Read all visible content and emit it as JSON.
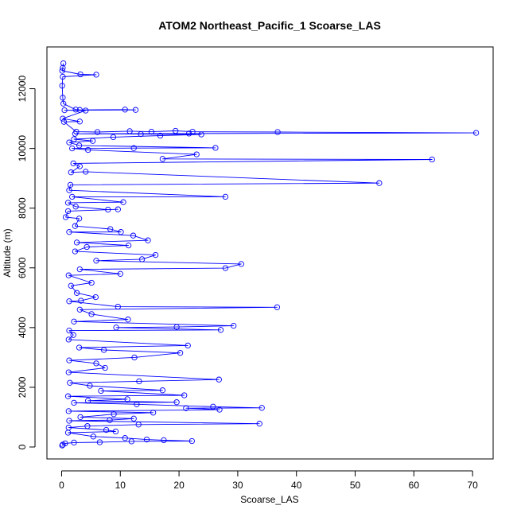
{
  "chart_data": {
    "type": "line",
    "title": "ATOM2 Northeast_Pacific_1 Scoarse_LAS",
    "xlabel": "Scoarse_LAS",
    "ylabel": "Altitude (m)",
    "xlim": [
      -2.5,
      73.5
    ],
    "ylim": [
      -400,
      13400
    ],
    "xticks": [
      0,
      10,
      20,
      30,
      40,
      50,
      60,
      70
    ],
    "yticks": [
      0,
      2000,
      4000,
      6000,
      8000,
      10000,
      12000
    ],
    "grid": false,
    "series": [
      {
        "line_color": "#0000ff",
        "marker": "open-circle",
        "points": [
          [
            0.3,
            12850
          ],
          [
            0.2,
            12700
          ],
          [
            0.1,
            12600
          ],
          [
            3.2,
            12480
          ],
          [
            5.9,
            12470
          ],
          [
            0.2,
            12400
          ],
          [
            0.1,
            12100
          ],
          [
            0.2,
            11700
          ],
          [
            0.3,
            11500
          ],
          [
            2.4,
            11300
          ],
          [
            3.1,
            11290
          ],
          [
            10.8,
            11300
          ],
          [
            12.6,
            11290
          ],
          [
            0.5,
            11280
          ],
          [
            4.1,
            11270
          ],
          [
            0.2,
            11000
          ],
          [
            3.1,
            10900
          ],
          [
            0.4,
            10890
          ],
          [
            2.5,
            10560
          ],
          [
            6.1,
            10550
          ],
          [
            11.6,
            10580
          ],
          [
            15.3,
            10560
          ],
          [
            19.4,
            10590
          ],
          [
            22.3,
            10560
          ],
          [
            36.8,
            10550
          ],
          [
            70.6,
            10520
          ],
          [
            21.7,
            10500
          ],
          [
            2.3,
            10490
          ],
          [
            13.5,
            10480
          ],
          [
            23.8,
            10470
          ],
          [
            16.8,
            10430
          ],
          [
            8.8,
            10380
          ],
          [
            2.1,
            10310
          ],
          [
            5.3,
            10250
          ],
          [
            1.3,
            10200
          ],
          [
            3.0,
            10100
          ],
          [
            26.2,
            10020
          ],
          [
            12.3,
            10010
          ],
          [
            1.8,
            10000
          ],
          [
            4.5,
            9950
          ],
          [
            23.0,
            9800
          ],
          [
            17.2,
            9650
          ],
          [
            63.1,
            9630
          ],
          [
            2.0,
            9500
          ],
          [
            3.1,
            9400
          ],
          [
            1.6,
            9200
          ],
          [
            4.1,
            9220
          ],
          [
            54.1,
            8840
          ],
          [
            1.5,
            8780
          ],
          [
            1.3,
            8600
          ],
          [
            27.9,
            8380
          ],
          [
            1.8,
            8380
          ],
          [
            10.5,
            8200
          ],
          [
            1.1,
            8180
          ],
          [
            2.4,
            8050
          ],
          [
            7.9,
            7950
          ],
          [
            9.6,
            7960
          ],
          [
            1.1,
            7900
          ],
          [
            0.7,
            7700
          ],
          [
            3.0,
            7650
          ],
          [
            2.3,
            7400
          ],
          [
            8.3,
            7300
          ],
          [
            10.1,
            7200
          ],
          [
            1.3,
            7200
          ],
          [
            12.2,
            7080
          ],
          [
            14.7,
            6920
          ],
          [
            2.6,
            6850
          ],
          [
            11.4,
            6750
          ],
          [
            4.3,
            6700
          ],
          [
            2.3,
            6550
          ],
          [
            16.0,
            6430
          ],
          [
            13.7,
            6290
          ],
          [
            5.9,
            6240
          ],
          [
            30.6,
            6130
          ],
          [
            27.9,
            5990
          ],
          [
            3.1,
            5950
          ],
          [
            10.0,
            5800
          ],
          [
            1.2,
            5750
          ],
          [
            5.1,
            5500
          ],
          [
            1.6,
            5400
          ],
          [
            2.6,
            5160
          ],
          [
            5.8,
            5020
          ],
          [
            3.3,
            4900
          ],
          [
            1.3,
            4880
          ],
          [
            9.6,
            4700
          ],
          [
            36.7,
            4680
          ],
          [
            3.1,
            4600
          ],
          [
            5.1,
            4450
          ],
          [
            11.3,
            4270
          ],
          [
            2.1,
            4200
          ],
          [
            29.3,
            4060
          ],
          [
            19.6,
            4020
          ],
          [
            9.3,
            4000
          ],
          [
            27.1,
            3920
          ],
          [
            1.3,
            3900
          ],
          [
            2.0,
            3750
          ],
          [
            1.2,
            3600
          ],
          [
            21.5,
            3400
          ],
          [
            3.0,
            3330
          ],
          [
            7.2,
            3250
          ],
          [
            20.2,
            3150
          ],
          [
            12.4,
            3000
          ],
          [
            1.3,
            2900
          ],
          [
            5.9,
            2800
          ],
          [
            7.4,
            2650
          ],
          [
            1.2,
            2500
          ],
          [
            26.8,
            2260
          ],
          [
            13.2,
            2200
          ],
          [
            1.4,
            2150
          ],
          [
            4.8,
            2050
          ],
          [
            17.2,
            1900
          ],
          [
            6.7,
            1880
          ],
          [
            20.9,
            1730
          ],
          [
            1.1,
            1700
          ],
          [
            11.2,
            1600
          ],
          [
            4.5,
            1550
          ],
          [
            19.6,
            1500
          ],
          [
            2.1,
            1480
          ],
          [
            12.8,
            1430
          ],
          [
            25.8,
            1350
          ],
          [
            34.1,
            1310
          ],
          [
            21.2,
            1300
          ],
          [
            26.9,
            1250
          ],
          [
            1.2,
            1200
          ],
          [
            15.6,
            1150
          ],
          [
            8.9,
            1100
          ],
          [
            3.2,
            1000
          ],
          [
            12.3,
            950
          ],
          [
            8.2,
            900
          ],
          [
            1.3,
            880
          ],
          [
            33.7,
            780
          ],
          [
            13.1,
            750
          ],
          [
            4.4,
            700
          ],
          [
            1.2,
            650
          ],
          [
            7.6,
            570
          ],
          [
            9.2,
            520
          ],
          [
            1.1,
            480
          ],
          [
            5.4,
            350
          ],
          [
            10.8,
            300
          ],
          [
            14.5,
            250
          ],
          [
            17.4,
            230
          ],
          [
            22.2,
            200
          ],
          [
            11.9,
            190
          ],
          [
            6.5,
            160
          ],
          [
            2.1,
            150
          ],
          [
            0.6,
            120
          ],
          [
            0.2,
            80
          ],
          [
            0.1,
            50
          ]
        ]
      }
    ]
  }
}
